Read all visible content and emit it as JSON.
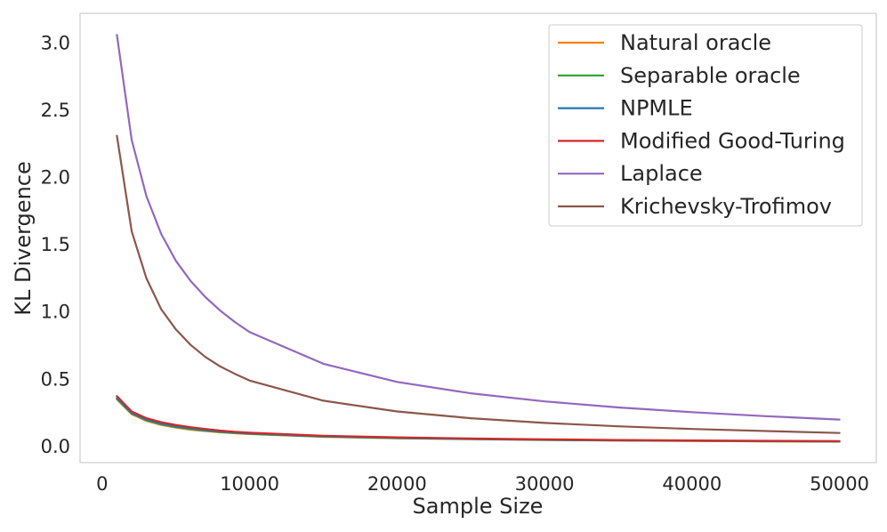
{
  "chart_data": {
    "type": "line",
    "xlabel": "Sample Size",
    "ylabel": "KL Divergence",
    "xlim": [
      -1500,
      52500
    ],
    "ylim": [
      -0.12,
      3.22
    ],
    "xticks": [
      0,
      10000,
      20000,
      30000,
      40000,
      50000
    ],
    "xtick_labels": [
      "0",
      "10000",
      "20000",
      "30000",
      "40000",
      "50000"
    ],
    "yticks": [
      0.0,
      0.5,
      1.0,
      1.5,
      2.0,
      2.5,
      3.0
    ],
    "ytick_labels": [
      "0.0",
      "0.5",
      "1.0",
      "1.5",
      "2.0",
      "2.5",
      "3.0"
    ],
    "grid": false,
    "legend_position": "top-right",
    "x": [
      1000,
      2000,
      3000,
      4000,
      5000,
      6000,
      7000,
      8000,
      9000,
      10000,
      15000,
      20000,
      25000,
      30000,
      35000,
      40000,
      45000,
      50000
    ],
    "series": [
      {
        "name": "Natural oracle",
        "color": "#ff7f0e",
        "values": [
          0.35,
          0.24,
          0.19,
          0.16,
          0.14,
          0.125,
          0.115,
          0.105,
          0.098,
          0.092,
          0.072,
          0.061,
          0.054,
          0.048,
          0.044,
          0.041,
          0.038,
          0.036
        ]
      },
      {
        "name": "Separable oracle",
        "color": "#2ca02c",
        "values": [
          0.355,
          0.245,
          0.195,
          0.165,
          0.145,
          0.13,
          0.118,
          0.108,
          0.1,
          0.094,
          0.073,
          0.062,
          0.055,
          0.049,
          0.045,
          0.042,
          0.039,
          0.037
        ]
      },
      {
        "name": "NPMLE",
        "color": "#1f77b4",
        "values": [
          0.36,
          0.25,
          0.2,
          0.17,
          0.15,
          0.135,
          0.122,
          0.112,
          0.104,
          0.097,
          0.076,
          0.064,
          0.056,
          0.05,
          0.046,
          0.043,
          0.04,
          0.038
        ]
      },
      {
        "name": "Modified Good-Turing",
        "color": "#d62728",
        "values": [
          0.375,
          0.26,
          0.21,
          0.18,
          0.16,
          0.143,
          0.13,
          0.118,
          0.109,
          0.102,
          0.08,
          0.068,
          0.059,
          0.053,
          0.048,
          0.045,
          0.042,
          0.04
        ]
      },
      {
        "name": "Laplace",
        "color": "#9467bd",
        "values": [
          3.06,
          2.28,
          1.86,
          1.58,
          1.38,
          1.23,
          1.11,
          1.01,
          0.925,
          0.85,
          0.615,
          0.48,
          0.395,
          0.335,
          0.29,
          0.255,
          0.225,
          0.2
        ]
      },
      {
        "name": "Krichevsky-Trofimov",
        "color": "#8c564b",
        "values": [
          2.31,
          1.6,
          1.25,
          1.02,
          0.87,
          0.755,
          0.665,
          0.595,
          0.54,
          0.49,
          0.34,
          0.26,
          0.21,
          0.175,
          0.15,
          0.13,
          0.115,
          0.1
        ]
      }
    ]
  }
}
